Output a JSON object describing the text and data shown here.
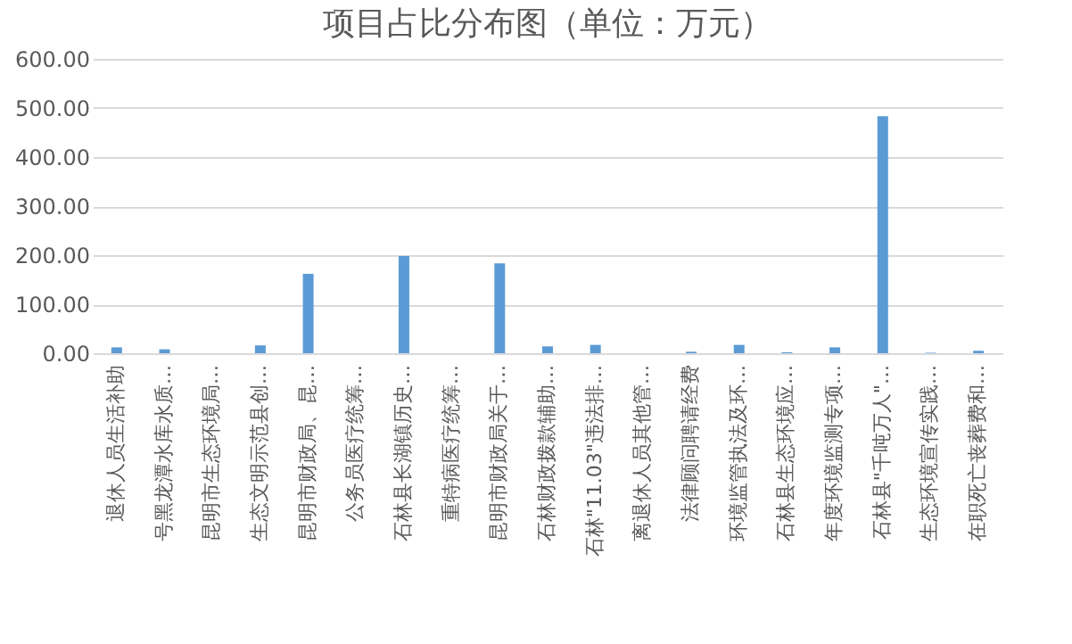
{
  "chart_data": {
    "type": "bar",
    "title": "项目占比分布图（单位：万元）",
    "categories": [
      "退休人员生活补助",
      "号黑龙潭水库水质…",
      "昆明市生态环境局…",
      "生态文明示范县创…",
      "昆明市财政局、昆…",
      "公务员医疗统筹…",
      "石林县长湖镇历史…",
      "重特病医疗统筹…",
      "昆明市财政局关于…",
      "石林财政拨款辅助…",
      "石林\"11.03\"违法排…",
      "离退休人员其他管…",
      "法律顾问聘请经费",
      "环境监管执法及环…",
      "石林县生态环境应…",
      "年度环境监测专项…",
      "石林县\"千吨万人\"…",
      "生态环境宣传实践…",
      "在职死亡丧葬费和…"
    ],
    "values": [
      12,
      8,
      0,
      16,
      162,
      0,
      198,
      0,
      183,
      14,
      17,
      0,
      3,
      17,
      2,
      12,
      483,
      1,
      5
    ],
    "color": "#5b9bd5",
    "ylim": [
      0,
      600
    ],
    "yticks": [
      {
        "value": 0,
        "label": "0.00"
      },
      {
        "value": 100,
        "label": "100.00"
      },
      {
        "value": 200,
        "label": "200.00"
      },
      {
        "value": 300,
        "label": "300.00"
      },
      {
        "value": 400,
        "label": "400.00"
      },
      {
        "value": 500,
        "label": "500.00"
      },
      {
        "value": 600,
        "label": "600.00"
      }
    ],
    "grid": "y"
  }
}
